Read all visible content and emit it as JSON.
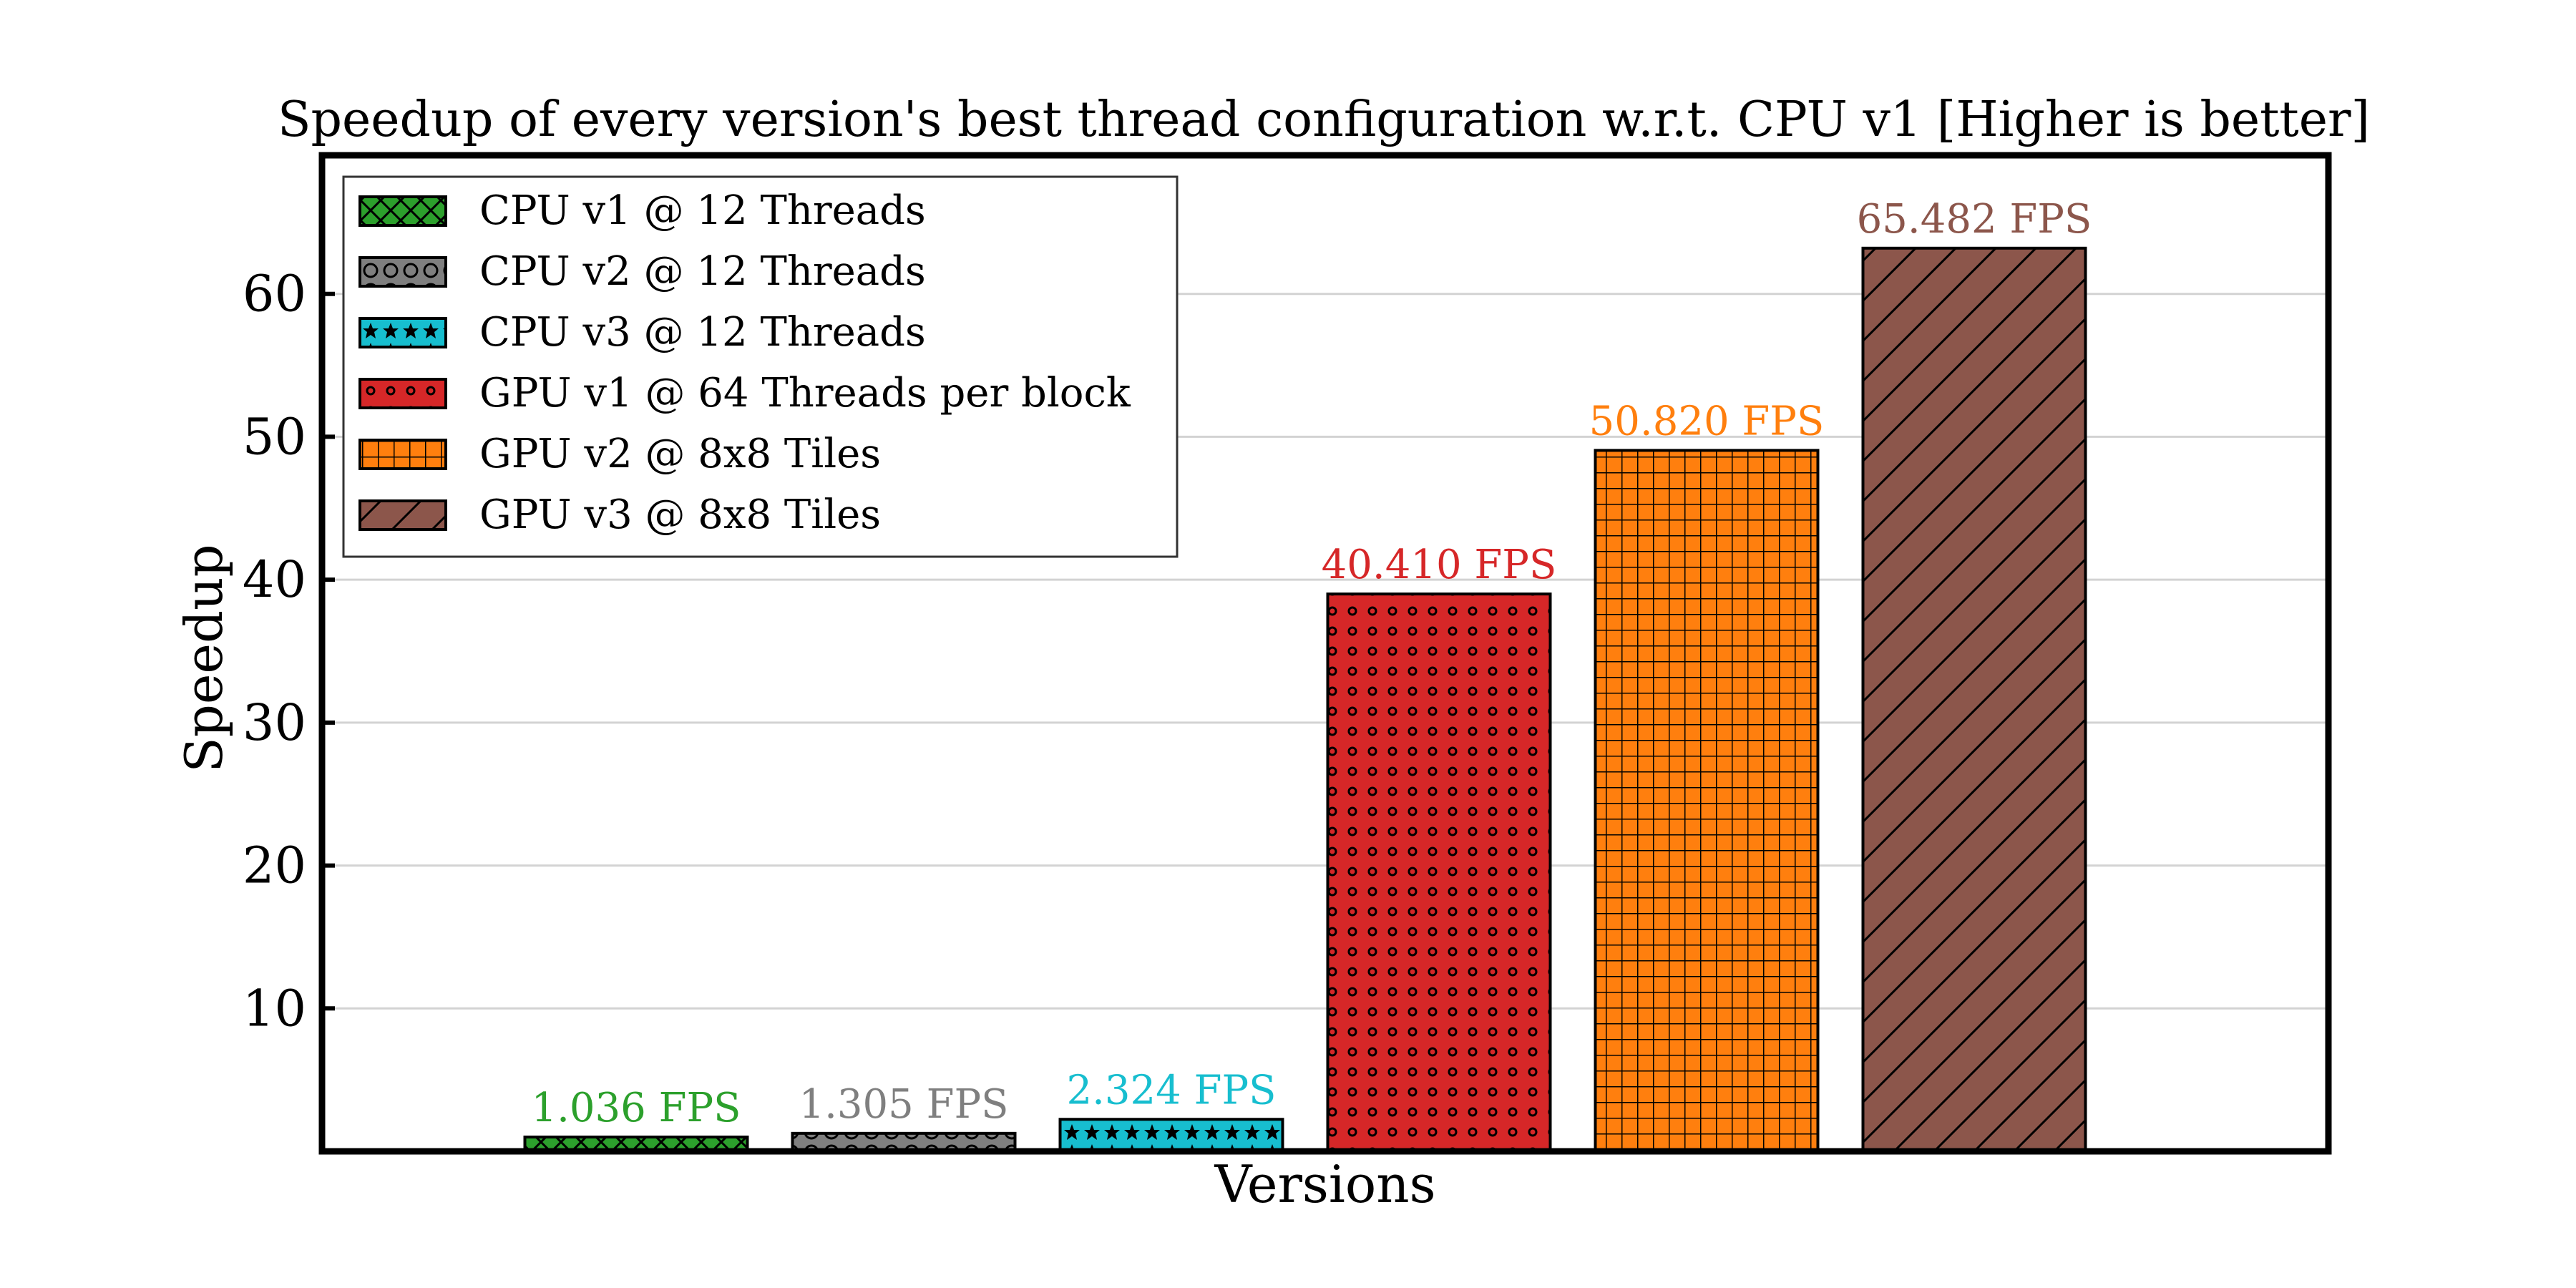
{
  "chart_data": {
    "type": "bar",
    "title": "Speedup of every version's best thread configuration w.r.t. CPU v1 [Higher is better]",
    "xlabel": "Versions",
    "ylabel": "Speedup",
    "ylim": [
      0,
      69.7
    ],
    "yticks": [
      10,
      20,
      30,
      40,
      50,
      60
    ],
    "grid": "horizontal",
    "legend_placement": "top-left",
    "categories": [
      "CPU v1 @ 12 Threads",
      "CPU v2 @ 12 Threads",
      "CPU v3 @ 12 Threads",
      "GPU v1 @ 64 Threads per block",
      "GPU v2 @ 8x8 Tiles",
      "GPU v3 @ 8x8 Tiles"
    ],
    "values": [
      1.0,
      1.26,
      2.24,
      39.0,
      49.05,
      63.2
    ],
    "data_labels": [
      "1.036 FPS",
      "1.305 FPS",
      "2.324 FPS",
      "40.410 FPS",
      "50.820 FPS",
      "65.482 FPS"
    ],
    "colors": [
      "#2ca02c",
      "#7f7f7f",
      "#17becf",
      "#d62728",
      "#ff7f0e",
      "#8c564b"
    ],
    "hatches": [
      "x",
      "o",
      "*",
      ".",
      "+",
      "/"
    ]
  }
}
